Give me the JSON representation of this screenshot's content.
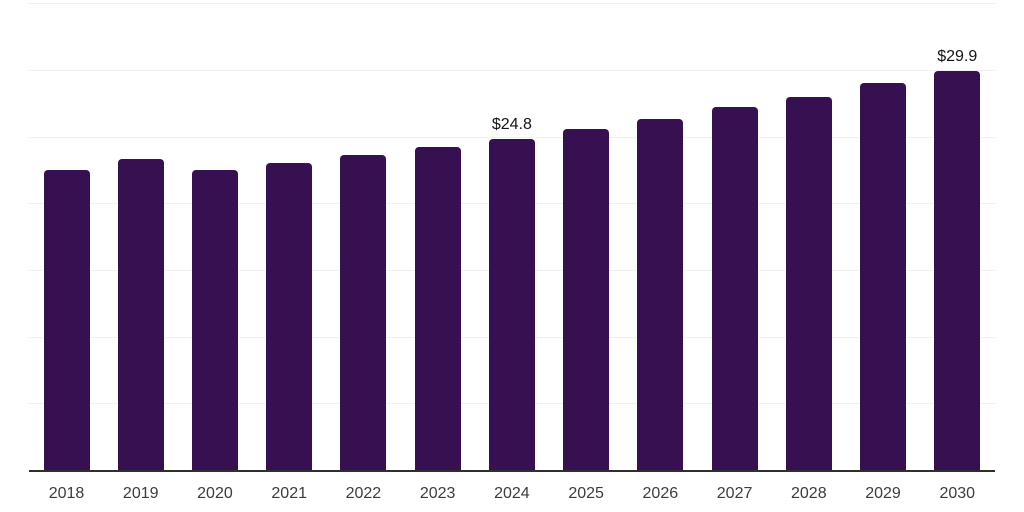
{
  "chart_data": {
    "type": "bar",
    "title": "",
    "xlabel": "",
    "ylabel": "",
    "categories": [
      "2018",
      "2019",
      "2020",
      "2021",
      "2022",
      "2023",
      "2024",
      "2025",
      "2026",
      "2027",
      "2028",
      "2029",
      "2030"
    ],
    "values": [
      22.5,
      23.3,
      22.5,
      23.0,
      23.6,
      24.2,
      24.8,
      25.6,
      26.3,
      27.2,
      28.0,
      29.0,
      29.9
    ],
    "data_labels": {
      "2024": "$24.8",
      "2030": "$29.9"
    },
    "ylim": [
      0,
      35
    ],
    "grid": true,
    "gridline_interval": 5,
    "y_axis_tick_labels_visible": false,
    "legend_position": "none",
    "colors": {
      "bar": "#371052",
      "gridline": "#f0f0f0",
      "axis": "#2f2f2f",
      "tick_label": "#3c3c3c",
      "data_label": "#141414",
      "background": "#ffffff"
    }
  }
}
